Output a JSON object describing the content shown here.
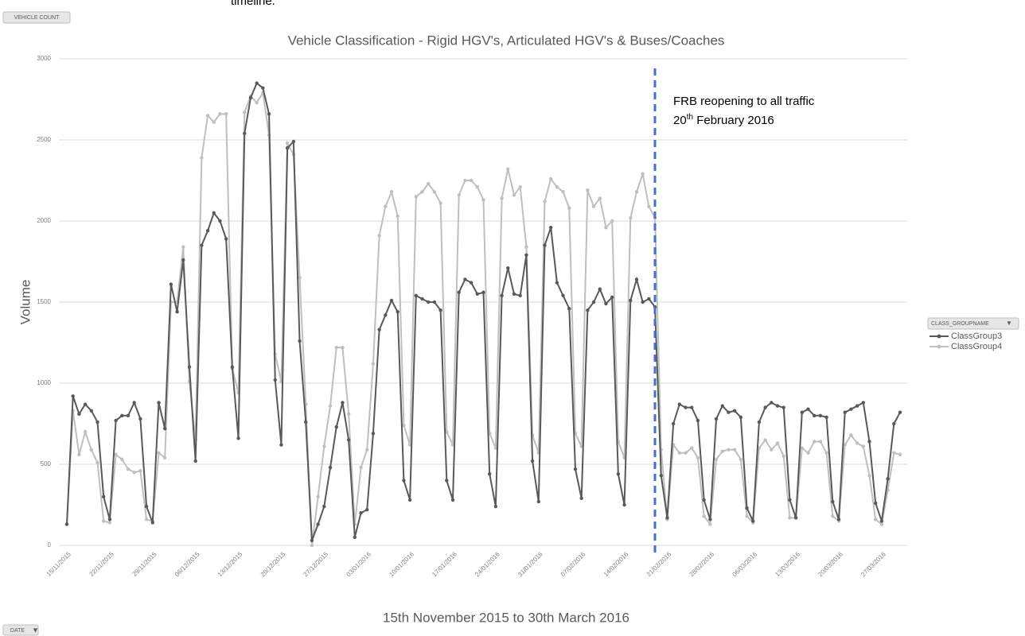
{
  "header": {
    "cut_text": "timeline.",
    "vehicle_button": "VEHICLE COUNT",
    "date_button": "DATE"
  },
  "chart_data": {
    "type": "line",
    "title": "Vehicle Classification - Rigid HGV's, Articulated HGV's & Buses/Coaches",
    "y_label": "Volume",
    "x_label": "15th November 2015 to 30th March 2016",
    "legend_title": "CLASS_GROUPNAME",
    "legend_position": "right",
    "grid": true,
    "ylim": [
      0,
      3000
    ],
    "yticks": [
      0,
      500,
      1000,
      1500,
      2000,
      2500,
      3000
    ],
    "annotation": {
      "line1": "FRB reopening to all traffic",
      "line2_day": "20",
      "line2_suffix": "th",
      "line2_rest": "February 2016"
    },
    "categories": [
      "15/11/2015",
      null,
      null,
      null,
      null,
      null,
      null,
      "22/11/2015",
      null,
      null,
      null,
      null,
      null,
      null,
      "29/11/2015",
      null,
      null,
      null,
      null,
      null,
      null,
      "06/12/2015",
      null,
      null,
      null,
      null,
      null,
      null,
      "13/12/2015",
      null,
      null,
      null,
      null,
      null,
      null,
      "20/12/2015",
      null,
      null,
      null,
      null,
      null,
      null,
      "27/12/2015",
      null,
      null,
      null,
      null,
      null,
      null,
      "03/01/2016",
      null,
      null,
      null,
      null,
      null,
      null,
      "10/01/2016",
      null,
      null,
      null,
      null,
      null,
      null,
      "17/01/2016",
      null,
      null,
      null,
      null,
      null,
      null,
      "24/01/2016",
      null,
      null,
      null,
      null,
      null,
      null,
      "31/01/2016",
      null,
      null,
      null,
      null,
      null,
      null,
      "07/02/2016",
      null,
      null,
      null,
      null,
      null,
      null,
      "14/02/2016",
      null,
      null,
      null,
      null,
      null,
      null,
      "21/02/2016",
      null,
      null,
      null,
      null,
      null,
      null,
      "28/02/2016",
      null,
      null,
      null,
      null,
      null,
      null,
      "06/03/2016",
      null,
      null,
      null,
      null,
      null,
      null,
      "13/03/2016",
      null,
      null,
      null,
      null,
      null,
      null,
      "20/03/2016",
      null,
      null,
      null,
      null,
      null,
      null,
      "27/03/2016",
      null,
      null,
      null
    ],
    "series": [
      {
        "name": "ClassGroup3",
        "color": "#595959",
        "values": [
          130,
          920,
          810,
          870,
          830,
          760,
          300,
          160,
          770,
          800,
          800,
          880,
          780,
          240,
          140,
          880,
          720,
          1610,
          1440,
          1760,
          1100,
          520,
          1850,
          1940,
          2050,
          2000,
          1890,
          1100,
          660,
          2540,
          2760,
          2850,
          2820,
          2660,
          1020,
          620,
          2450,
          2490,
          1260,
          760,
          30,
          130,
          240,
          480,
          730,
          880,
          650,
          50,
          200,
          220,
          690,
          1330,
          1420,
          1510,
          1440,
          400,
          280,
          1540,
          1520,
          1500,
          1500,
          1450,
          400,
          280,
          1560,
          1640,
          1620,
          1550,
          1560,
          440,
          240,
          1540,
          1710,
          1550,
          1540,
          1790,
          520,
          270,
          1850,
          1960,
          1620,
          1540,
          1460,
          470,
          290,
          1450,
          1500,
          1580,
          1490,
          1530,
          440,
          250,
          1510,
          1640,
          1500,
          1520,
          1470,
          430,
          170,
          750,
          870,
          850,
          850,
          770,
          280,
          160,
          780,
          860,
          820,
          830,
          790,
          230,
          150,
          760,
          850,
          880,
          860,
          850,
          280,
          170,
          820,
          840,
          800,
          800,
          790,
          270,
          160,
          820,
          840,
          860,
          880,
          640,
          260,
          150,
          410,
          750,
          820
        ]
      },
      {
        "name": "ClassGroup4",
        "color": "#bfbfbf",
        "values": [
          130,
          830,
          560,
          700,
          590,
          510,
          150,
          140,
          560,
          530,
          470,
          450,
          460,
          160,
          150,
          570,
          540,
          1500,
          1500,
          1840,
          1010,
          650,
          2390,
          2650,
          2610,
          2660,
          2660,
          1090,
          940,
          2670,
          2770,
          2730,
          2790,
          2530,
          1180,
          1010,
          2480,
          2410,
          1650,
          870,
          0,
          300,
          610,
          860,
          1220,
          1220,
          810,
          130,
          480,
          590,
          1120,
          1910,
          2090,
          2180,
          2030,
          740,
          620,
          2150,
          2180,
          2230,
          2180,
          2110,
          700,
          620,
          2160,
          2250,
          2250,
          2210,
          2130,
          690,
          600,
          2140,
          2320,
          2160,
          2210,
          1840,
          680,
          570,
          2120,
          2260,
          2210,
          2180,
          2080,
          690,
          610,
          2190,
          2090,
          2140,
          1960,
          2000,
          640,
          540,
          2020,
          2180,
          2290,
          2090,
          2020,
          590,
          160,
          620,
          570,
          570,
          600,
          540,
          180,
          130,
          530,
          580,
          590,
          590,
          530,
          180,
          140,
          600,
          650,
          590,
          630,
          550,
          170,
          170,
          600,
          570,
          640,
          640,
          570,
          180,
          150,
          620,
          680,
          630,
          610,
          430,
          160,
          130,
          340,
          570,
          560
        ]
      }
    ]
  }
}
